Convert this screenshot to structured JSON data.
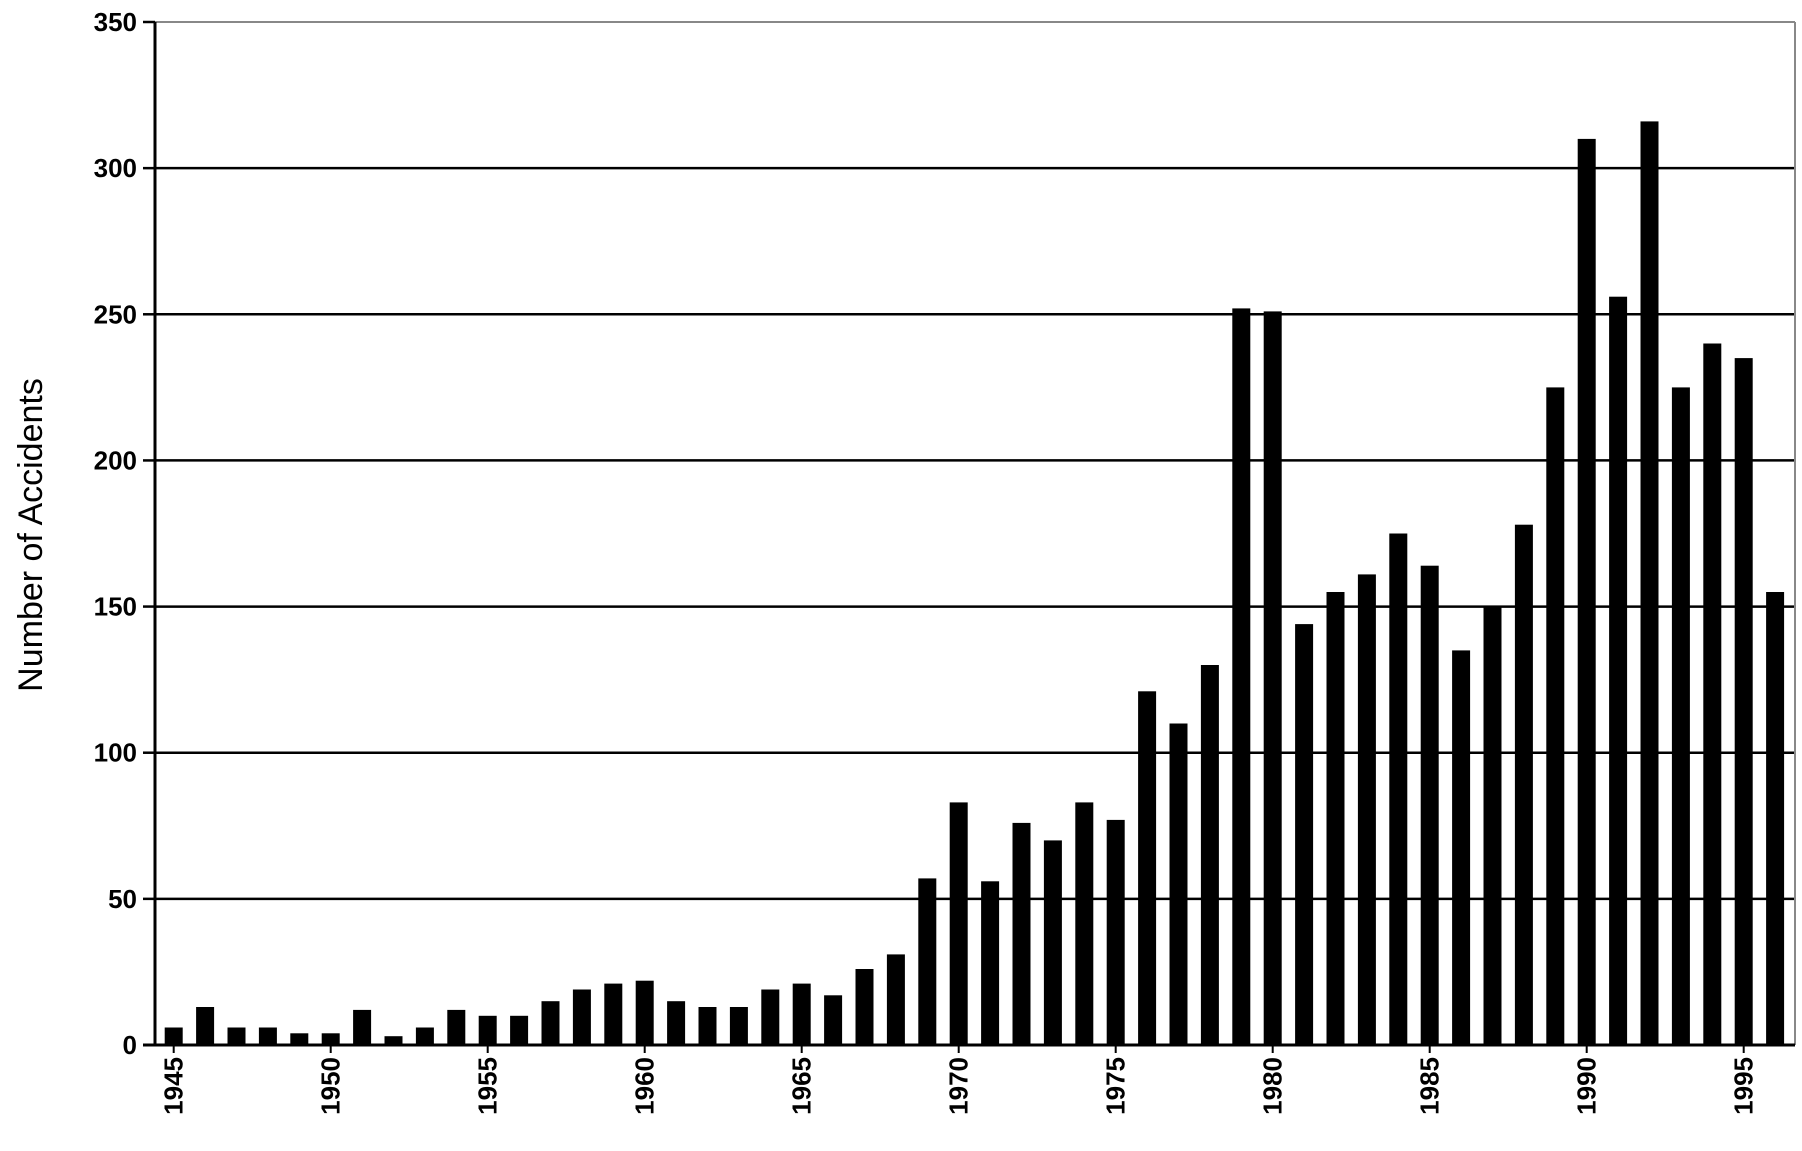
{
  "chart_data": {
    "type": "bar",
    "title": "",
    "xlabel": "",
    "ylabel": "Number of Accidents",
    "ylim": [
      0,
      350
    ],
    "yticks": [
      0,
      50,
      100,
      150,
      200,
      250,
      300,
      350
    ],
    "grid": true,
    "legend": "none",
    "bar_color": "#000000",
    "grid_color": "#000000",
    "frame_color": "#888888",
    "x_tick_labels": [
      "1945",
      "1950",
      "1955",
      "1960",
      "1965",
      "1970",
      "1975",
      "1980",
      "1985",
      "1990",
      "1995"
    ],
    "categories": [
      1945,
      1946,
      1947,
      1948,
      1949,
      1950,
      1951,
      1952,
      1953,
      1954,
      1955,
      1956,
      1957,
      1958,
      1959,
      1960,
      1961,
      1962,
      1963,
      1964,
      1965,
      1966,
      1967,
      1968,
      1969,
      1970,
      1971,
      1972,
      1973,
      1974,
      1975,
      1976,
      1977,
      1978,
      1979,
      1980,
      1981,
      1982,
      1983,
      1984,
      1985,
      1986,
      1987,
      1988,
      1989,
      1990,
      1991,
      1992,
      1993,
      1994,
      1995,
      1996
    ],
    "values": [
      6,
      13,
      6,
      6,
      4,
      4,
      12,
      3,
      6,
      12,
      10,
      10,
      15,
      19,
      21,
      22,
      15,
      13,
      13,
      19,
      21,
      17,
      26,
      31,
      57,
      83,
      56,
      76,
      70,
      83,
      77,
      121,
      110,
      130,
      252,
      251,
      144,
      155,
      161,
      175,
      164,
      135,
      150,
      178,
      225,
      310,
      256,
      316,
      225,
      240,
      235,
      155
    ]
  }
}
